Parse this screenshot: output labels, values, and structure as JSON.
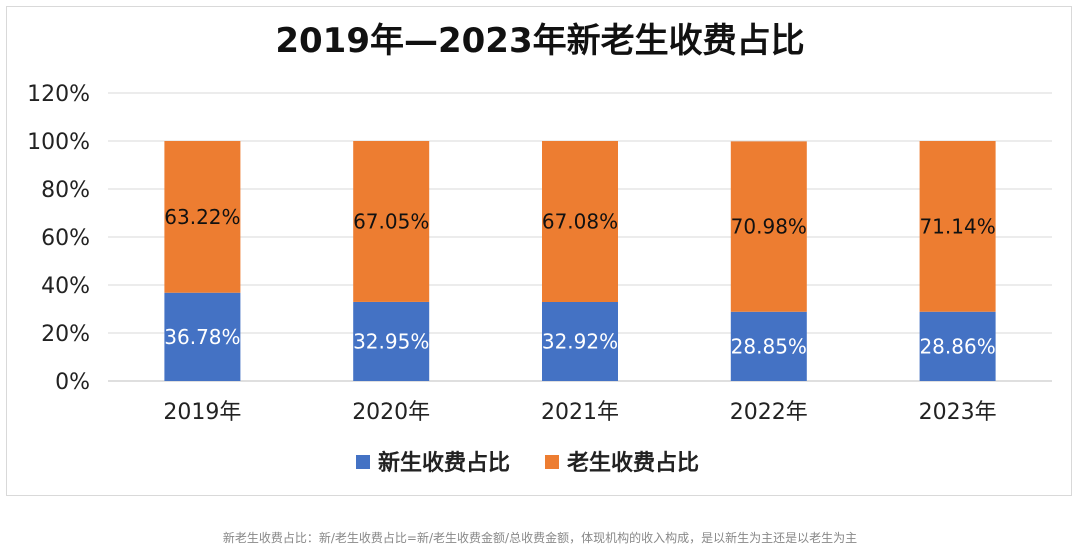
{
  "chart_data": {
    "type": "bar",
    "stacked": true,
    "title": "2019年—2023年新老生收费占比",
    "categories": [
      "2019年",
      "2020年",
      "2021年",
      "2022年",
      "2023年"
    ],
    "series": [
      {
        "name": "新生收费占比",
        "color": "#4472C4",
        "values": [
          36.78,
          32.95,
          32.92,
          28.85,
          28.86
        ],
        "labels": [
          "36.78%",
          "32.95%",
          "32.92%",
          "28.85%",
          "28.86%"
        ]
      },
      {
        "name": "老生收费占比",
        "color": "#ED7D31",
        "values": [
          63.22,
          67.05,
          67.08,
          70.98,
          71.14
        ],
        "labels": [
          "63.22%",
          "67.05%",
          "67.08%",
          "70.98%",
          "71.14%"
        ]
      }
    ],
    "yticks": [
      0,
      20,
      40,
      60,
      80,
      100,
      120
    ],
    "ytick_labels": [
      "0%",
      "20%",
      "40%",
      "60%",
      "80%",
      "100%",
      "120%"
    ],
    "ylim": [
      0,
      120
    ],
    "grid": true,
    "legend": "bottom"
  },
  "caption": "新老生收费占比：新/老生收费占比=新/老生收费金额/总收费金额，体现机构的收入构成，是以新生为主还是以老生为主"
}
